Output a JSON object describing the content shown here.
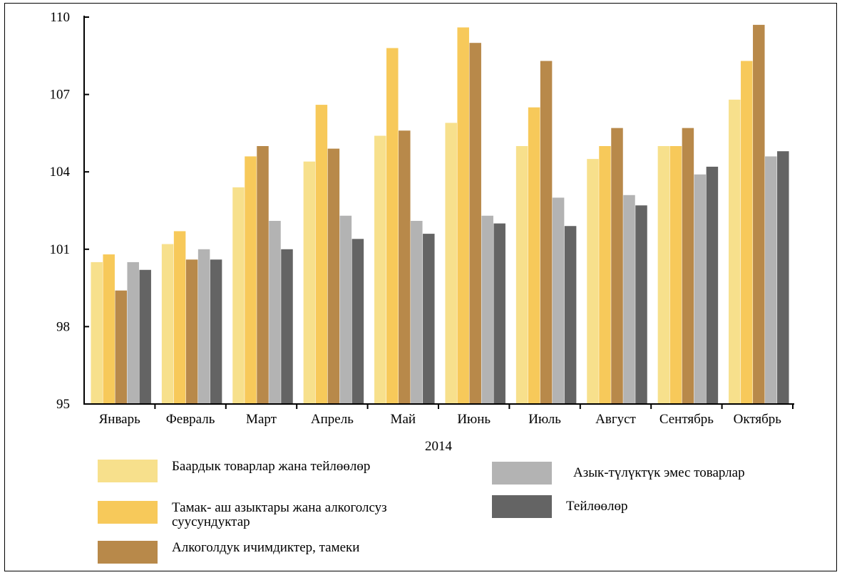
{
  "chart_data": {
    "type": "bar",
    "xlabel": "2014",
    "ylabel": "",
    "ylim": [
      95,
      110
    ],
    "yticks": [
      95,
      98,
      101,
      104,
      107,
      110
    ],
    "categories": [
      "Январь",
      "Февраль",
      "Март",
      "Апрель",
      "Май",
      "Июнь",
      "Июль",
      "Август",
      "Сентябрь",
      "Октябрь"
    ],
    "series": [
      {
        "name": "Баардык товарлар жана тейлөөлөр",
        "color": "#f7e08c",
        "values": [
          100.5,
          101.2,
          103.4,
          104.4,
          105.4,
          105.9,
          105.0,
          104.5,
          105.0,
          106.8
        ]
      },
      {
        "name": "Тамак- аш азыктары жана алкоголсуз суусундуктар",
        "color": "#f7c95a",
        "values": [
          100.8,
          101.7,
          104.6,
          106.6,
          108.8,
          109.6,
          106.5,
          105.0,
          105.0,
          108.3
        ]
      },
      {
        "name": "Алкоголдук ичимдиктер, тамеки",
        "color": "#b8894a",
        "values": [
          99.4,
          100.6,
          105.0,
          104.9,
          105.6,
          109.0,
          108.3,
          105.7,
          105.7,
          109.7
        ]
      },
      {
        "name": "Азык-түлүктүк эмес товарлар",
        "color": "#b3b3b3",
        "values": [
          100.5,
          101.0,
          102.1,
          102.3,
          102.1,
          102.3,
          103.0,
          103.1,
          103.9,
          104.6
        ]
      },
      {
        "name": "Тейлөөлөр",
        "color": "#646464",
        "values": [
          100.2,
          100.6,
          101.0,
          101.4,
          101.6,
          102.0,
          101.9,
          102.7,
          104.2,
          104.8
        ]
      }
    ]
  }
}
